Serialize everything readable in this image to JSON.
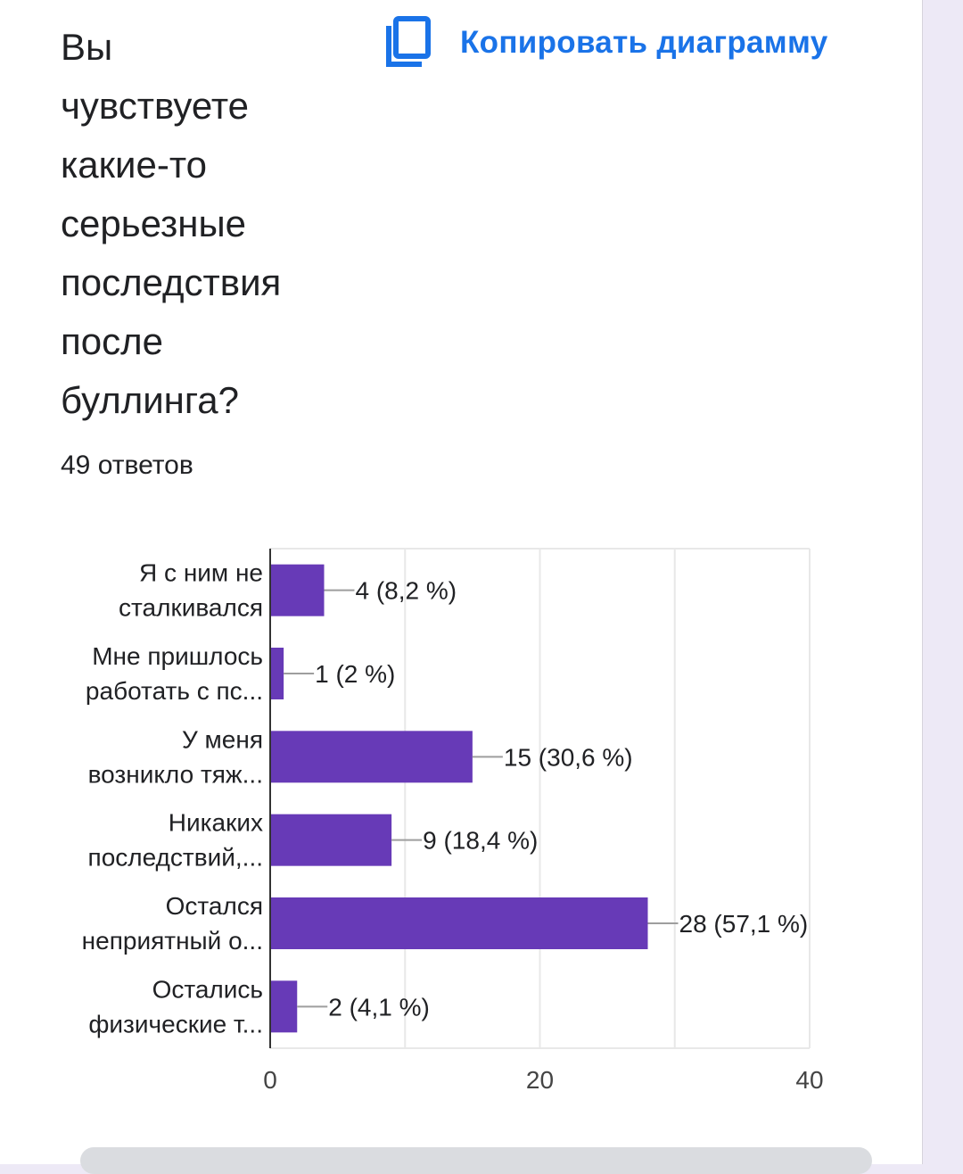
{
  "question": {
    "title": "Вы\nчувствуете\nкакие-то\nсерьезные\nпоследствия\nпосле\nбуллинга?",
    "responses": "49 ответов"
  },
  "toolbar": {
    "copy_label": "Копировать диаграмму",
    "copy_icon": "copy-icon"
  },
  "colors": {
    "bar": "#673ab7",
    "accent": "#1a73e8",
    "text": "#202124",
    "grid": "#e8e8e8"
  },
  "chart_data": {
    "type": "bar",
    "orientation": "horizontal",
    "categories": [
      [
        "Я с ним не",
        "сталкивался"
      ],
      [
        "Мне пришлось",
        "работать с пс..."
      ],
      [
        "У меня",
        "возникло тяж..."
      ],
      [
        "Никаких",
        "последствий,..."
      ],
      [
        "Остался",
        "неприятный о..."
      ],
      [
        "Остались",
        "физические т..."
      ]
    ],
    "values": [
      4,
      1,
      15,
      9,
      28,
      2
    ],
    "data_labels": [
      "4 (8,2 %)",
      "1 (2 %)",
      "15 (30,6 %)",
      "9 (18,4 %)",
      "28 (57,1 %)",
      "2 (4,1 %)"
    ],
    "xlim": [
      0,
      40
    ],
    "xticks": [
      0,
      20,
      40
    ],
    "grid": true
  }
}
